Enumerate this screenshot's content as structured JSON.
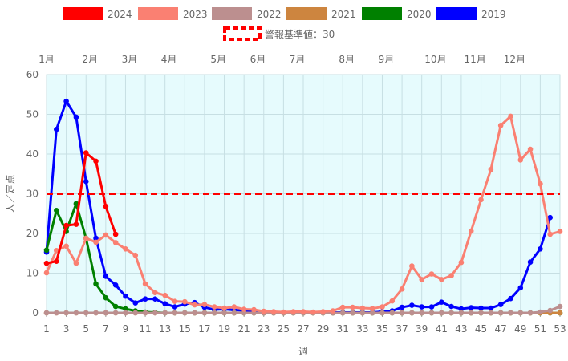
{
  "chart_data": {
    "type": "line",
    "xlabel": "週",
    "ylabel": "人／定点",
    "ylim": [
      0,
      60
    ],
    "yticks": [
      0,
      10,
      20,
      30,
      40,
      50,
      60
    ],
    "xlim": [
      1,
      53
    ],
    "xticks": [
      1,
      3,
      5,
      7,
      9,
      11,
      13,
      15,
      17,
      19,
      21,
      23,
      25,
      27,
      29,
      31,
      33,
      35,
      37,
      39,
      41,
      43,
      45,
      47,
      49,
      51,
      53
    ],
    "grid": true,
    "legend_position": "top",
    "months": [
      {
        "label": "1月",
        "week": 1
      },
      {
        "label": "2月",
        "week": 5.4
      },
      {
        "label": "3月",
        "week": 9.4
      },
      {
        "label": "4月",
        "week": 13.4
      },
      {
        "label": "5月",
        "week": 18.4
      },
      {
        "label": "6月",
        "week": 22.4
      },
      {
        "label": "7月",
        "week": 26.4
      },
      {
        "label": "8月",
        "week": 31.4
      },
      {
        "label": "9月",
        "week": 35.4
      },
      {
        "label": "10月",
        "week": 40.4
      },
      {
        "label": "11月",
        "week": 44.4
      },
      {
        "label": "12月",
        "week": 48.4
      }
    ],
    "threshold": {
      "name": "警報基準値：30",
      "value": 30,
      "color": "#ff0000"
    },
    "series": [
      {
        "name": "2024",
        "color": "#ff0000",
        "start_week": 1,
        "values": [
          12.5,
          13.0,
          22.0,
          22.3,
          40.3,
          38.2,
          26.8,
          19.8
        ]
      },
      {
        "name": "2023",
        "color": "#fa8072",
        "start_week": 1,
        "values": [
          10.1,
          15.7,
          16.8,
          12.5,
          18.8,
          17.8,
          19.6,
          17.7,
          16.1,
          14.5,
          7.3,
          5.1,
          4.4,
          2.9,
          2.8,
          2.0,
          2.1,
          1.5,
          1.2,
          1.5,
          0.9,
          0.8,
          0.4,
          0.3,
          0.2,
          0.3,
          0.3,
          0.2,
          0.3,
          0.5,
          1.4,
          1.4,
          1.2,
          1.1,
          1.5,
          3.0,
          6.0,
          11.8,
          8.4,
          9.8,
          8.4,
          9.4,
          12.7,
          20.6,
          28.5,
          36.1,
          47.2,
          49.5,
          38.5,
          41.2,
          32.5,
          19.8,
          20.5
        ]
      },
      {
        "name": "2022",
        "color": "#bc8f8f",
        "start_week": 1,
        "values": [
          0,
          0,
          0,
          0,
          0,
          0,
          0,
          0,
          0,
          0,
          0,
          0,
          0,
          0,
          0,
          0,
          0,
          0,
          0,
          0,
          0,
          0,
          0,
          0,
          0,
          0,
          0,
          0,
          0,
          0,
          0,
          0,
          0,
          0,
          0,
          0,
          0,
          0,
          0,
          0,
          0,
          0,
          0,
          0,
          0,
          0,
          0,
          0,
          0,
          0,
          0.2,
          0.6,
          1.6
        ]
      },
      {
        "name": "2021",
        "color": "#cd853f",
        "start_week": 1,
        "values": [
          0,
          0,
          0,
          0,
          0,
          0,
          0,
          0,
          0,
          0,
          0,
          0,
          0,
          0,
          0,
          0,
          0,
          0,
          0,
          0,
          0,
          0,
          0,
          0,
          0,
          0,
          0,
          0,
          0,
          0,
          0,
          0,
          0,
          0,
          0,
          0,
          0,
          0,
          0,
          0,
          0,
          0,
          0,
          0,
          0,
          0,
          0,
          0,
          0,
          0,
          0,
          0,
          0
        ]
      },
      {
        "name": "2020",
        "color": "#008000",
        "start_week": 1,
        "values": [
          15.8,
          25.8,
          20.5,
          27.5,
          18.8,
          7.3,
          3.8,
          1.6,
          1.0,
          0.5,
          0.2,
          0.1,
          0,
          0,
          0,
          0,
          0,
          0,
          0,
          0,
          0,
          0,
          0,
          0,
          0,
          0,
          0,
          0,
          0,
          0,
          0,
          0,
          0,
          0,
          0,
          0,
          0,
          0,
          0,
          0,
          0,
          0,
          0,
          0,
          0,
          0,
          0,
          0,
          0,
          0,
          0,
          0,
          0
        ]
      },
      {
        "name": "2019",
        "color": "#0000ff",
        "start_week": 1,
        "values": [
          15.3,
          46.2,
          53.3,
          49.3,
          33.1,
          18.8,
          9.2,
          7.0,
          4.2,
          2.5,
          3.5,
          3.5,
          2.3,
          1.5,
          2.2,
          2.6,
          1.4,
          0.8,
          0.9,
          0.7,
          0.6,
          0.5,
          0.2,
          0.2,
          0.1,
          0.1,
          0.1,
          0.1,
          0.1,
          0.1,
          0.1,
          0.1,
          0.1,
          0.1,
          0.3,
          0.5,
          1.4,
          1.9,
          1.5,
          1.5,
          2.7,
          1.6,
          1.0,
          1.3,
          1.2,
          1.2,
          2.1,
          3.6,
          6.3,
          12.8,
          16.1,
          24.0
        ]
      }
    ]
  }
}
